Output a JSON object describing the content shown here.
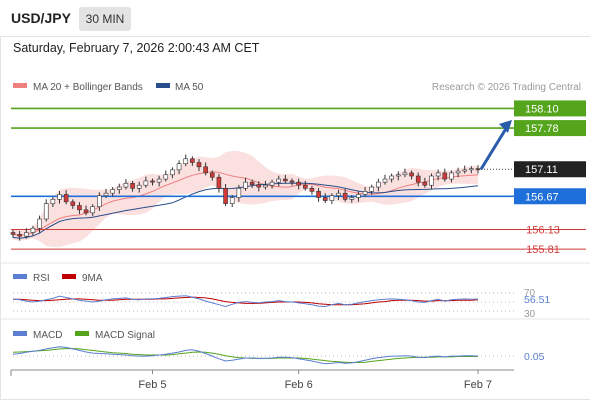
{
  "header": {
    "symbol": "USD/JPY",
    "timeframe": "30 MIN",
    "datetime": "Saturday, February 7, 2026 2:00:43 AM CET"
  },
  "colors": {
    "ma20": "#f08080",
    "ma50": "#2a4e8c",
    "resistance": "#55a51c",
    "pivot": "#1e6fd9",
    "support": "#d23a3a",
    "bull_candle": "#ffffff",
    "bear_candle": "#d23a3a",
    "arrow": "#2a5caa",
    "rsi": "#5b7fd1",
    "rsi_ma": "#c00000",
    "macd": "#5b7fd1",
    "macd_signal": "#55a51c"
  },
  "chart_data": [
    {
      "type": "candlestick",
      "legend": [
        "MA 20 + Bollinger Bands",
        "MA 50"
      ],
      "legend_position": "top-left",
      "watermark": "Research © 2026 Trading Central",
      "ylim": [
        155.6,
        158.4
      ],
      "x_ticks": [
        "Feb 5",
        "Feb 6",
        "Feb 7"
      ],
      "last_price": 157.11,
      "levels": [
        {
          "value": 158.1,
          "label": "158.10",
          "kind": "resistance"
        },
        {
          "value": 157.78,
          "label": "157.78",
          "kind": "resistance"
        },
        {
          "value": 156.67,
          "label": "156.67",
          "kind": "pivot"
        },
        {
          "value": 156.13,
          "label": "156.13",
          "kind": "support"
        },
        {
          "value": 155.81,
          "label": "155.81",
          "kind": "support"
        }
      ],
      "arrow": {
        "from": 157.11,
        "to": 157.88,
        "direction": "up"
      },
      "close": [
        156.05,
        156.02,
        156.08,
        156.15,
        156.3,
        156.55,
        156.62,
        156.7,
        156.58,
        156.52,
        156.45,
        156.4,
        156.5,
        156.68,
        156.72,
        156.78,
        156.82,
        156.88,
        156.8,
        156.85,
        156.92,
        156.9,
        156.95,
        157.02,
        157.1,
        157.2,
        157.28,
        157.22,
        157.15,
        157.05,
        156.98,
        156.8,
        156.55,
        156.65,
        156.8,
        156.9,
        156.86,
        156.82,
        156.85,
        156.9,
        156.95,
        156.92,
        156.9,
        156.85,
        156.8,
        156.75,
        156.65,
        156.6,
        156.68,
        156.72,
        156.62,
        156.65,
        156.7,
        156.75,
        156.82,
        156.9,
        156.95,
        157.0,
        157.02,
        157.05,
        157.0,
        156.9,
        156.85,
        157.0,
        157.05,
        156.95,
        157.05,
        157.08,
        157.1,
        157.12,
        157.11
      ]
    },
    {
      "type": "line",
      "legend": [
        "RSI",
        "9MA"
      ],
      "ylim": [
        30,
        70
      ],
      "y_ticks": [
        "70",
        "30"
      ],
      "last_value_label": "56.51",
      "series": [
        {
          "name": "RSI",
          "values": [
            57,
            55,
            52,
            50,
            52,
            55,
            58,
            63,
            60,
            57,
            54,
            52,
            50,
            52,
            55,
            57,
            58,
            59,
            56,
            55,
            57,
            57,
            58,
            60,
            62,
            63,
            64,
            61,
            57,
            52,
            48,
            44,
            40,
            45,
            49,
            51,
            49,
            48,
            50,
            51,
            53,
            51,
            50,
            48,
            46,
            44,
            41,
            40,
            44,
            47,
            44,
            45,
            48,
            51,
            53,
            55,
            56,
            57,
            56,
            55,
            53,
            50,
            49,
            53,
            56,
            52,
            55,
            56,
            57,
            56,
            56.5
          ]
        },
        {
          "name": "9MA",
          "values": [
            56,
            56,
            55,
            54,
            53,
            53,
            54,
            55,
            56,
            57,
            57,
            56,
            55,
            54,
            54,
            54,
            55,
            56,
            56,
            56,
            56,
            56,
            57,
            57,
            58,
            59,
            60,
            61,
            60,
            59,
            57,
            54,
            51,
            49,
            48,
            47,
            47,
            47,
            48,
            49,
            50,
            50,
            50,
            50,
            49,
            48,
            46,
            45,
            44,
            44,
            44,
            44,
            45,
            46,
            48,
            50,
            51,
            53,
            54,
            54,
            54,
            53,
            52,
            52,
            53,
            53,
            53,
            54,
            54,
            54,
            55
          ]
        }
      ]
    },
    {
      "type": "line",
      "legend": [
        "MACD",
        "MACD Signal"
      ],
      "ylim": [
        -0.45,
        0.45
      ],
      "last_value_label": "0.05",
      "series": [
        {
          "name": "MACD",
          "values": [
            0.1,
            0.12,
            0.15,
            0.18,
            0.2,
            0.24,
            0.27,
            0.3,
            0.28,
            0.24,
            0.2,
            0.16,
            0.13,
            0.12,
            0.11,
            0.1,
            0.09,
            0.08,
            0.06,
            0.05,
            0.05,
            0.06,
            0.08,
            0.1,
            0.13,
            0.16,
            0.2,
            0.22,
            0.18,
            0.12,
            0.05,
            -0.02,
            -0.08,
            -0.06,
            -0.03,
            0.0,
            0.0,
            -0.01,
            -0.01,
            0.0,
            0.02,
            0.02,
            0.01,
            -0.02,
            -0.05,
            -0.08,
            -0.12,
            -0.15,
            -0.14,
            -0.12,
            -0.14,
            -0.13,
            -0.1,
            -0.06,
            -0.02,
            0.01,
            0.03,
            0.05,
            0.05,
            0.06,
            0.05,
            0.02,
            0.01,
            0.04,
            0.05,
            0.03,
            0.05,
            0.05,
            0.06,
            0.06,
            0.05
          ]
        },
        {
          "name": "MACD Signal",
          "values": [
            0.15,
            0.16,
            0.17,
            0.18,
            0.19,
            0.2,
            0.22,
            0.24,
            0.25,
            0.25,
            0.24,
            0.22,
            0.2,
            0.18,
            0.16,
            0.14,
            0.13,
            0.12,
            0.1,
            0.09,
            0.08,
            0.08,
            0.08,
            0.08,
            0.09,
            0.11,
            0.13,
            0.15,
            0.16,
            0.15,
            0.13,
            0.1,
            0.06,
            0.03,
            0.01,
            0.0,
            -0.01,
            -0.01,
            -0.01,
            -0.01,
            0.0,
            0.0,
            0.0,
            0.0,
            -0.01,
            -0.03,
            -0.05,
            -0.07,
            -0.09,
            -0.1,
            -0.11,
            -0.12,
            -0.12,
            -0.11,
            -0.09,
            -0.07,
            -0.05,
            -0.03,
            -0.01,
            0.0,
            0.01,
            0.02,
            0.02,
            0.02,
            0.03,
            0.03,
            0.03,
            0.04,
            0.04,
            0.04,
            0.04
          ]
        }
      ]
    }
  ]
}
